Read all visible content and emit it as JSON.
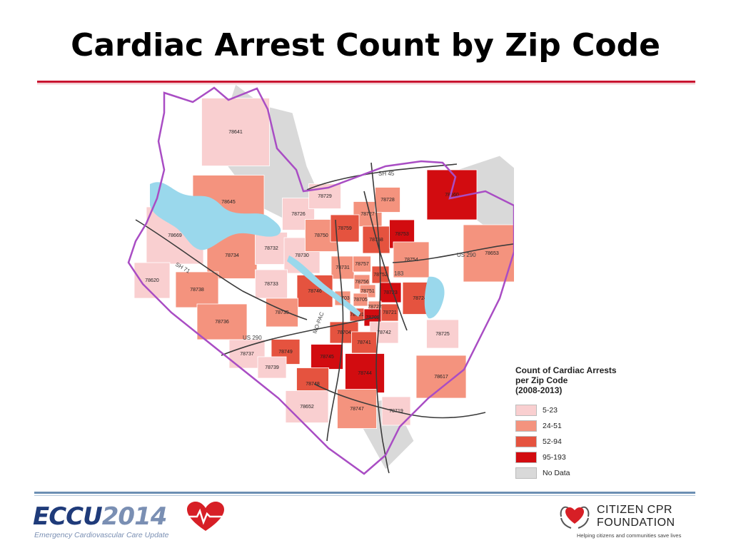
{
  "slide": {
    "title": "Cardiac Arrest Count by Zip Code"
  },
  "colors": {
    "band_5_23": "#f9cfd0",
    "band_24_51": "#f4937e",
    "band_52_94": "#e5533f",
    "band_95_193": "#d20c10",
    "no_data": "#d9d9d9",
    "water": "#9ad8ec",
    "county_border": "#a94dc4"
  },
  "legend": {
    "title_lines": [
      "Count of Cardiac Arrests",
      "per Zip Code",
      "(2008-2013)"
    ],
    "items": [
      {
        "label": "5-23",
        "color_key": "band_5_23"
      },
      {
        "label": "24-51",
        "color_key": "band_24_51"
      },
      {
        "label": "52-94",
        "color_key": "band_52_94"
      },
      {
        "label": "95-193",
        "color_key": "band_95_193"
      },
      {
        "label": "No Data",
        "color_key": "no_data"
      }
    ]
  },
  "map": {
    "roads": [
      "SH 45",
      "US 290",
      "SH 71",
      "US 290",
      "MO-PAC",
      "183"
    ],
    "zips": [
      {
        "zip": "78641",
        "band": "band_5_23"
      },
      {
        "zip": "78645",
        "band": "band_24_51"
      },
      {
        "zip": "78669",
        "band": "band_5_23"
      },
      {
        "zip": "78734",
        "band": "band_24_51"
      },
      {
        "zip": "78732",
        "band": "band_5_23"
      },
      {
        "zip": "78726",
        "band": "band_5_23"
      },
      {
        "zip": "78730",
        "band": "band_5_23"
      },
      {
        "zip": "78750",
        "band": "band_24_51"
      },
      {
        "zip": "78729",
        "band": "band_5_23"
      },
      {
        "zip": "78727",
        "band": "band_24_51"
      },
      {
        "zip": "78728",
        "band": "band_24_51"
      },
      {
        "zip": "78660",
        "band": "band_95_193"
      },
      {
        "zip": "78759",
        "band": "band_52_94"
      },
      {
        "zip": "78758",
        "band": "band_52_94"
      },
      {
        "zip": "78753",
        "band": "band_95_193"
      },
      {
        "zip": "78754",
        "band": "band_24_51"
      },
      {
        "zip": "78653",
        "band": "band_24_51"
      },
      {
        "zip": "78620",
        "band": "band_5_23"
      },
      {
        "zip": "78738",
        "band": "band_24_51"
      },
      {
        "zip": "78733",
        "band": "band_5_23"
      },
      {
        "zip": "78731",
        "band": "band_24_51"
      },
      {
        "zip": "78757",
        "band": "band_24_51"
      },
      {
        "zip": "78752",
        "band": "band_52_94"
      },
      {
        "zip": "78756",
        "band": "band_24_51"
      },
      {
        "zip": "78751",
        "band": "band_24_51"
      },
      {
        "zip": "78746",
        "band": "band_52_94"
      },
      {
        "zip": "78703",
        "band": "band_24_51"
      },
      {
        "zip": "78705",
        "band": "band_24_51"
      },
      {
        "zip": "78723",
        "band": "band_95_193"
      },
      {
        "zip": "78724",
        "band": "band_52_94"
      },
      {
        "zip": "78722",
        "band": "band_24_51"
      },
      {
        "zip": "78701",
        "band": "band_52_94"
      },
      {
        "zip": "78702",
        "band": "band_95_193"
      },
      {
        "zip": "78721",
        "band": "band_52_94"
      },
      {
        "zip": "78735",
        "band": "band_24_51"
      },
      {
        "zip": "78736",
        "band": "band_24_51"
      },
      {
        "zip": "78704",
        "band": "band_52_94"
      },
      {
        "zip": "78742",
        "band": "band_5_23"
      },
      {
        "zip": "78725",
        "band": "band_5_23"
      },
      {
        "zip": "78741",
        "band": "band_52_94"
      },
      {
        "zip": "78737",
        "band": "band_5_23"
      },
      {
        "zip": "78749",
        "band": "band_52_94"
      },
      {
        "zip": "78745",
        "band": "band_95_193"
      },
      {
        "zip": "78739",
        "band": "band_5_23"
      },
      {
        "zip": "78744",
        "band": "band_95_193"
      },
      {
        "zip": "78748",
        "band": "band_52_94"
      },
      {
        "zip": "78617",
        "band": "band_24_51"
      },
      {
        "zip": "78652",
        "band": "band_5_23"
      },
      {
        "zip": "78747",
        "band": "band_24_51"
      },
      {
        "zip": "78719",
        "band": "band_5_23"
      }
    ]
  },
  "footer": {
    "eccu": {
      "name_part1": "ECCU",
      "name_part2": "2014",
      "subtitle": "Emergency Cardiovascular Care Update"
    },
    "cpr": {
      "line1": "CITIZEN CPR",
      "line2": "FOUNDATION",
      "tagline": "Helping citizens and communities save lives"
    }
  }
}
